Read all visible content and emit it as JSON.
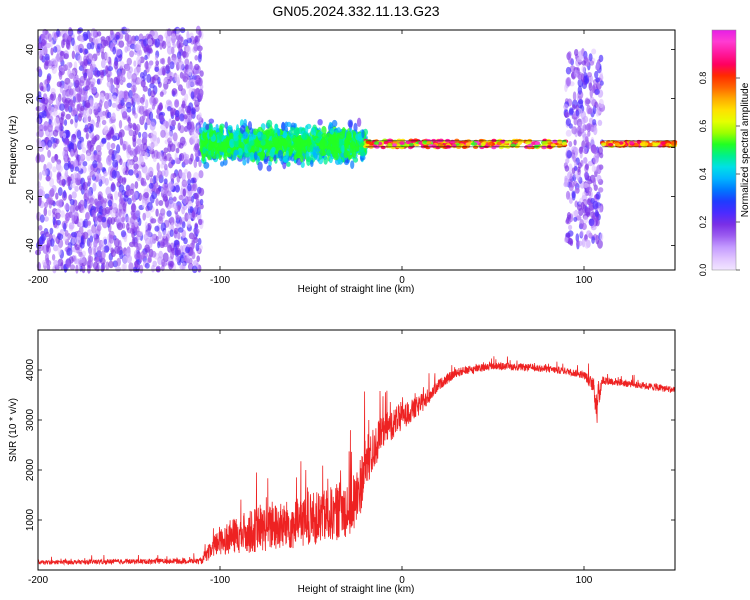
{
  "title": "GN05.2024.332.11.13.G23",
  "chart_data": [
    {
      "type": "heatmap",
      "xlabel": "Height of straight line (km)",
      "ylabel": "Frequency (Hz)",
      "xlim": [
        -200,
        150
      ],
      "ylim": [
        -50,
        48
      ],
      "xticks": [
        -200,
        -100,
        0,
        100
      ],
      "yticks": [
        -40,
        -20,
        0,
        20,
        40
      ],
      "colorbar": {
        "label": "Normalized spectral amplitude",
        "range": [
          0,
          1
        ],
        "ticks": [
          "0.0",
          "0.2",
          "0.4",
          "0.6",
          "0.8"
        ],
        "colors": [
          "#f2e6ff",
          "#e0c4ff",
          "#c49bff",
          "#9c5cf0",
          "#7a2fe6",
          "#4b2bff",
          "#1f3cff",
          "#0077ff",
          "#00b4ff",
          "#00e0e6",
          "#00f08c",
          "#22ff22",
          "#9cff00",
          "#e6ff00",
          "#ffe000",
          "#ffaa00",
          "#ff6400",
          "#ff2a00",
          "#ff0060",
          "#ff1aa0",
          "#ff3cd2",
          "#e61ee6"
        ]
      },
      "regions": [
        {
          "x": [
            -200,
            -110
          ],
          "y": [
            -50,
            48
          ],
          "amplitude": [
            0.05,
            0.25
          ],
          "pattern": "noise"
        },
        {
          "x": [
            -110,
            -20
          ],
          "y": [
            -8,
            12
          ],
          "amplitude": [
            0.2,
            0.5
          ],
          "pattern": "band"
        },
        {
          "x": [
            -20,
            90
          ],
          "y": [
            -1,
            4
          ],
          "amplitude": [
            0.5,
            0.95
          ],
          "pattern": "line"
        },
        {
          "x": [
            90,
            110
          ],
          "y": [
            -40,
            40
          ],
          "amplitude": [
            0.05,
            0.25
          ],
          "pattern": "noise"
        },
        {
          "x": [
            110,
            150
          ],
          "y": [
            0,
            3
          ],
          "amplitude": [
            0.6,
            0.9
          ],
          "pattern": "line"
        }
      ],
      "carrier_frequency": 1.5
    },
    {
      "type": "line",
      "xlabel": "Height of straight line (km)",
      "ylabel": "SNR (10 * v/v)",
      "xlim": [
        -200,
        150
      ],
      "ylim": [
        0,
        4800
      ],
      "xticks": [
        -200,
        -100,
        0,
        100
      ],
      "yticks": [
        1000,
        2000,
        3000,
        4000
      ],
      "color": "#ee2222",
      "series": [
        {
          "x": [
            -200,
            -150,
            -110,
            -100,
            -80,
            -60,
            -40,
            -30,
            -25,
            -20,
            -10,
            0,
            10,
            20,
            30,
            50,
            70,
            90,
            100,
            105,
            107,
            110,
            120,
            130,
            150
          ],
          "mean": [
            150,
            170,
            180,
            600,
            800,
            900,
            1100,
            1250,
            1400,
            2100,
            2800,
            3050,
            3300,
            3700,
            3950,
            4080,
            4050,
            3980,
            3900,
            3700,
            3300,
            3800,
            3750,
            3700,
            3600
          ],
          "spread": [
            80,
            100,
            110,
            600,
            900,
            1000,
            1100,
            1200,
            1300,
            1100,
            700,
            500,
            400,
            220,
            180,
            150,
            140,
            140,
            150,
            300,
            900,
            180,
            150,
            140,
            140
          ]
        }
      ]
    }
  ]
}
